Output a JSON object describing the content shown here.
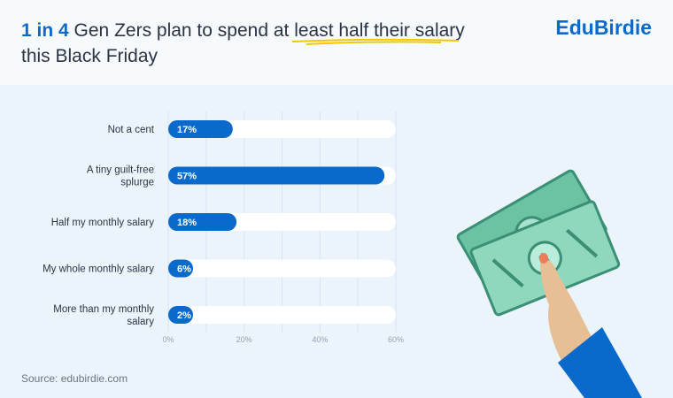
{
  "header": {
    "title_highlight": "1 in 4",
    "title_mid": " Gen Zers plan to spend at ",
    "title_underlined": "least half their salary",
    "title_end": " this Black Friday",
    "logo": "EduBirdie"
  },
  "source": "Source: edubirdie.com",
  "colors": {
    "accent": "#0a6acb",
    "track": "#ffffff",
    "underline": "#f5c800",
    "bill": "#7fd0b4"
  },
  "chart_data": {
    "type": "bar",
    "orientation": "horizontal",
    "categories": [
      "Not a cent",
      "A tiny guilt-free splurge",
      "Half my monthly salary",
      "My whole monthly salary",
      "More than my monthly salary"
    ],
    "values": [
      17,
      57,
      18,
      6,
      2
    ],
    "value_labels": [
      "17%",
      "57%",
      "18%",
      "6%",
      "2%"
    ],
    "xlim": [
      0,
      60
    ],
    "xticks": [
      0,
      20,
      40,
      60
    ],
    "xtick_labels": [
      "0%",
      "20%",
      "40%",
      "60%"
    ],
    "grid": true
  }
}
